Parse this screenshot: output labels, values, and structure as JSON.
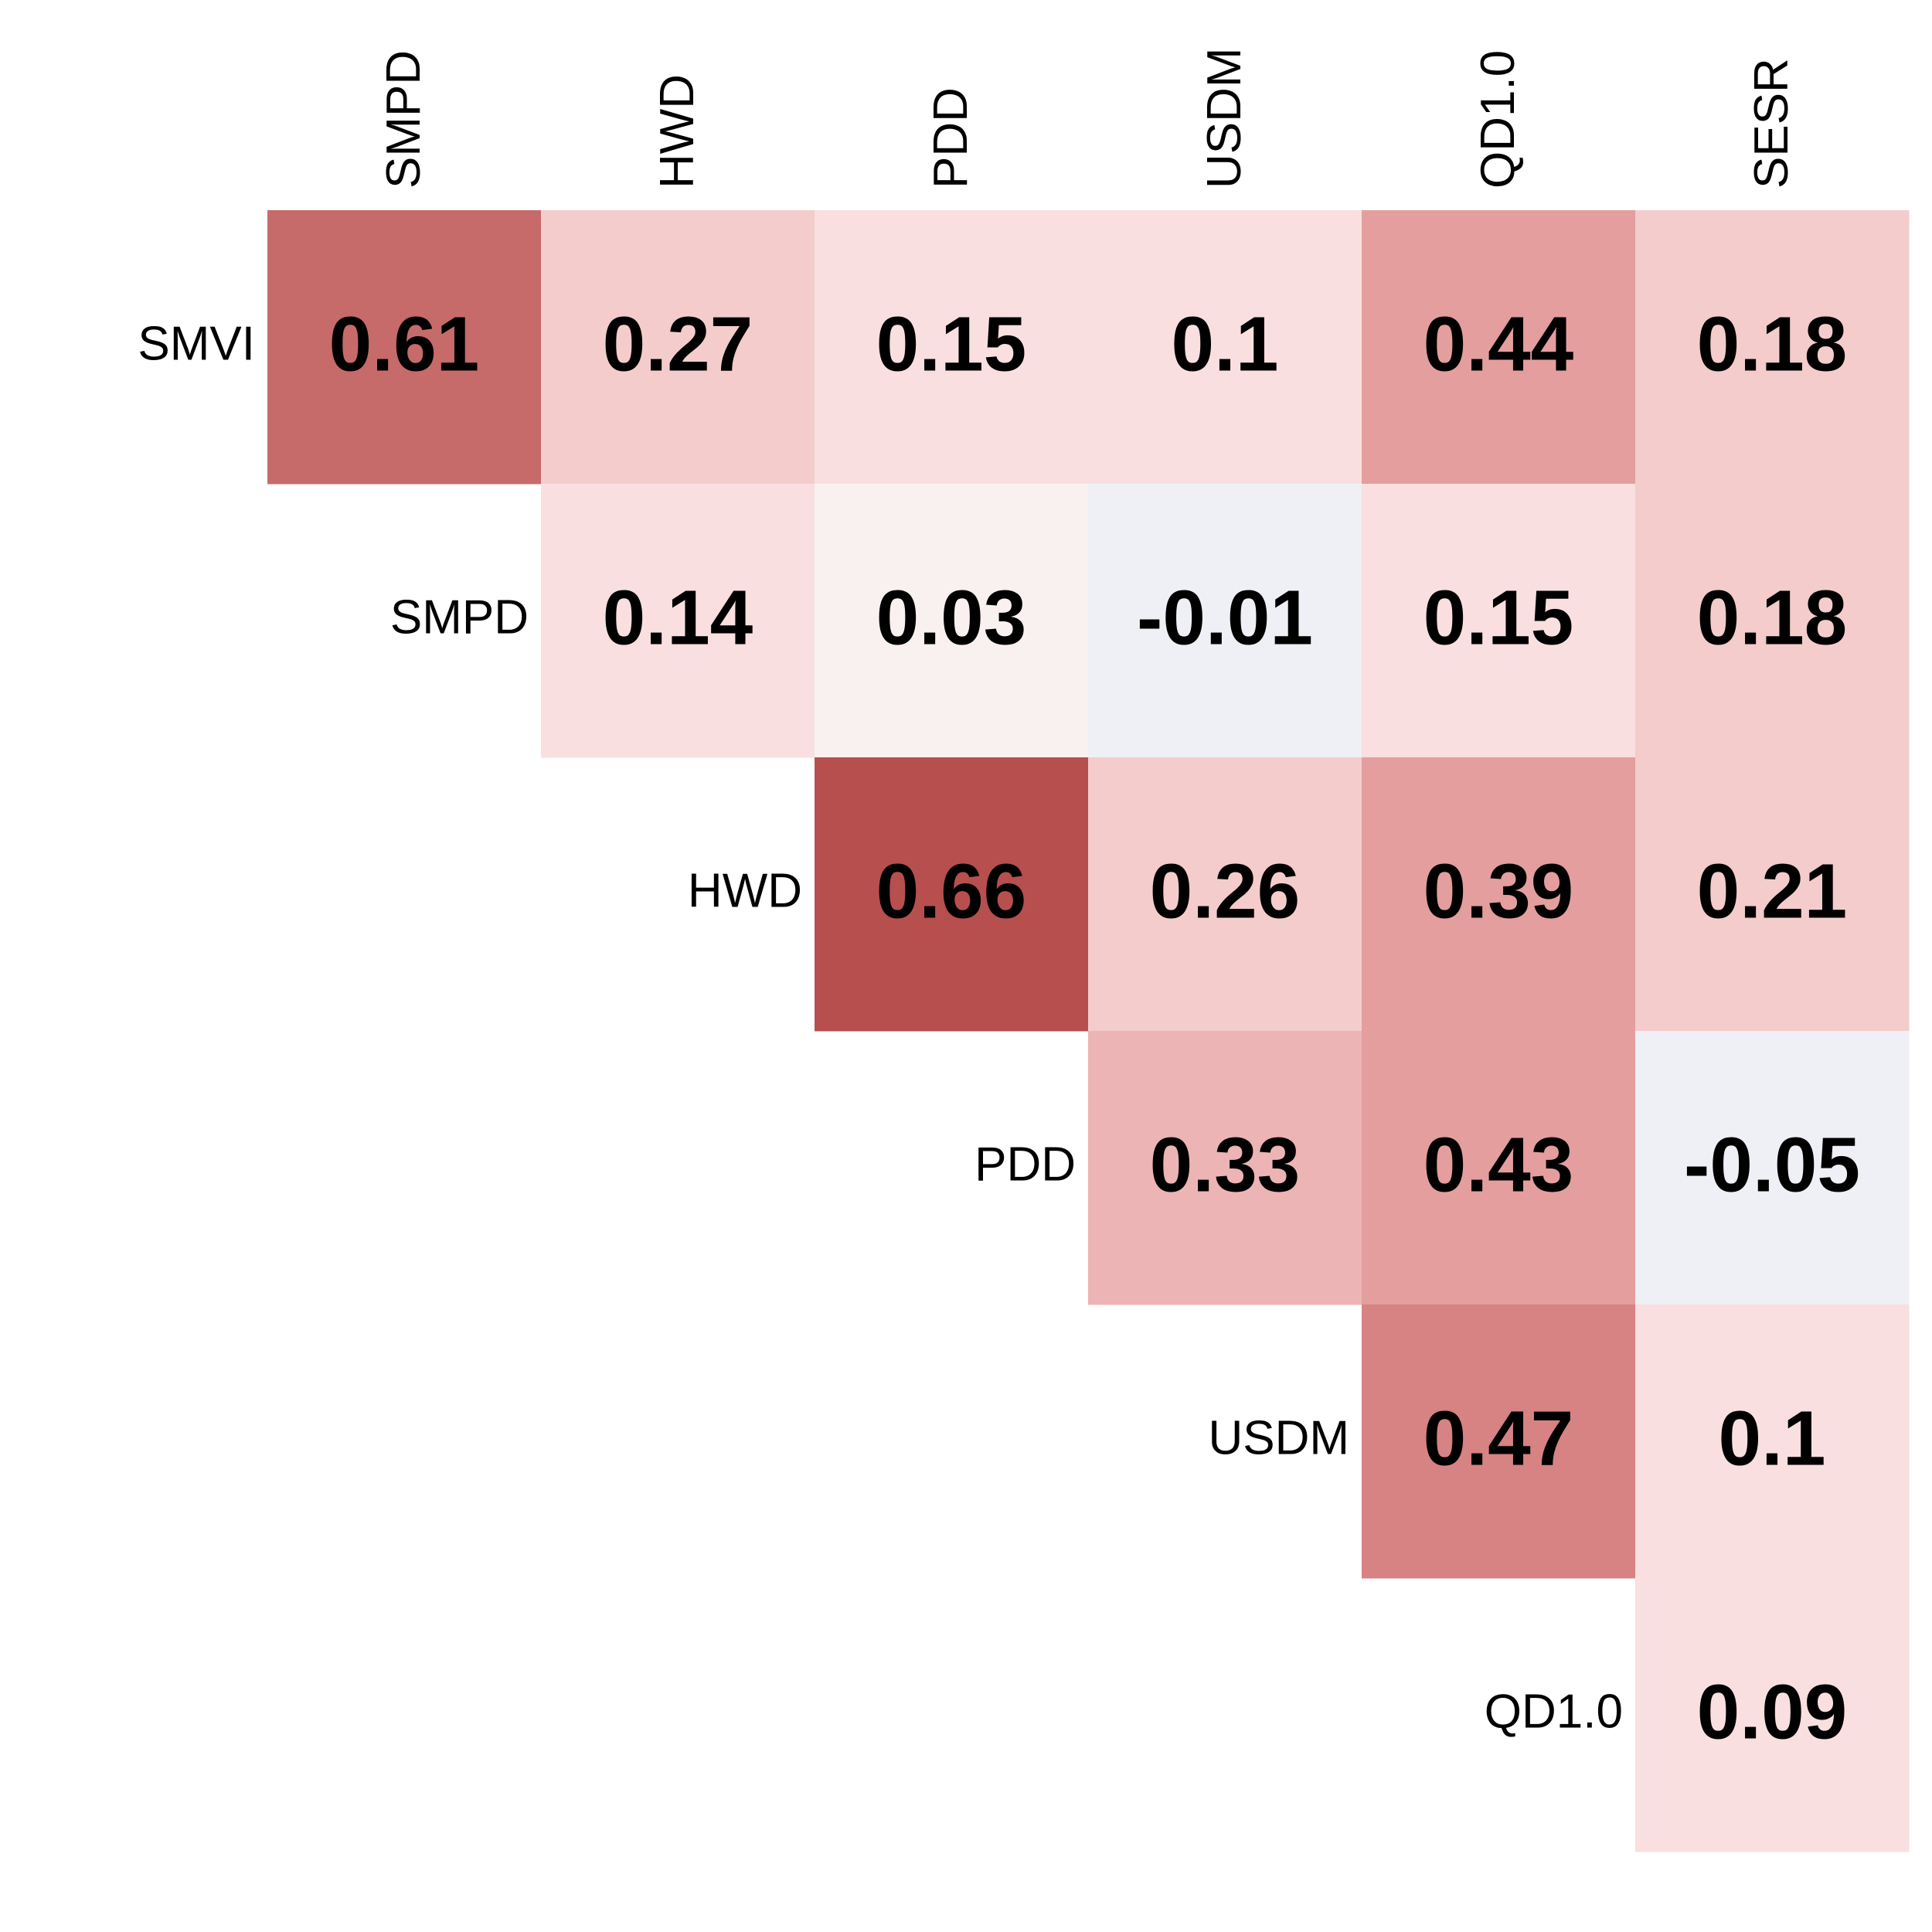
{
  "chart_data": {
    "type": "heatmap",
    "title": "",
    "xlabel": "",
    "ylabel": "",
    "columns": [
      "SMPD",
      "HWD",
      "PDD",
      "USDM",
      "QD1.0",
      "SESR"
    ],
    "rows": [
      "SMVI",
      "SMPD",
      "HWD",
      "PDD",
      "USDM",
      "QD1.0"
    ],
    "values": [
      [
        0.61,
        0.27,
        0.15,
        0.1,
        0.44,
        0.18
      ],
      [
        null,
        0.14,
        0.03,
        -0.01,
        0.15,
        0.18
      ],
      [
        null,
        null,
        0.66,
        0.26,
        0.39,
        0.21
      ],
      [
        null,
        null,
        null,
        0.33,
        0.43,
        -0.05
      ],
      [
        null,
        null,
        null,
        null,
        0.47,
        0.1
      ],
      [
        null,
        null,
        null,
        null,
        null,
        0.09
      ]
    ],
    "value_labels": [
      [
        "0.61",
        "0.27",
        "0.15",
        "0.1",
        "0.44",
        "0.18"
      ],
      [
        null,
        "0.14",
        "0.03",
        "-0.01",
        "0.15",
        "0.18"
      ],
      [
        null,
        null,
        "0.66",
        "0.26",
        "0.39",
        "0.21"
      ],
      [
        null,
        null,
        null,
        "0.33",
        "0.43",
        "-0.05"
      ],
      [
        null,
        null,
        null,
        null,
        "0.47",
        "0.1"
      ],
      [
        null,
        null,
        null,
        null,
        null,
        "0.09"
      ]
    ],
    "layout": "upper-triangle",
    "color_scale": {
      "negative": "#eff0f5",
      "zero": "#f8f1f0",
      "low": "#f9dfe0",
      "mid": "#e49e9e",
      "high": "#b74f4f"
    },
    "cell_colors": [
      [
        "#c76a6a",
        "#f4cccc",
        "#f9dfe0",
        "#f9dfe0",
        "#e49e9e",
        "#f4cccc"
      ],
      [
        null,
        "#f9dfe0",
        "#f8f1f0",
        "#eff0f5",
        "#f9dfe0",
        "#f4cccc"
      ],
      [
        null,
        null,
        "#b74f4f",
        "#f4cccc",
        "#e49e9e",
        "#f4cccc"
      ],
      [
        null,
        null,
        null,
        "#ecb4b5",
        "#e49e9e",
        "#eff0f5"
      ],
      [
        null,
        null,
        null,
        null,
        "#d78283",
        "#f9dfe0"
      ],
      [
        null,
        null,
        null,
        null,
        null,
        "#f9dfe0"
      ]
    ]
  }
}
